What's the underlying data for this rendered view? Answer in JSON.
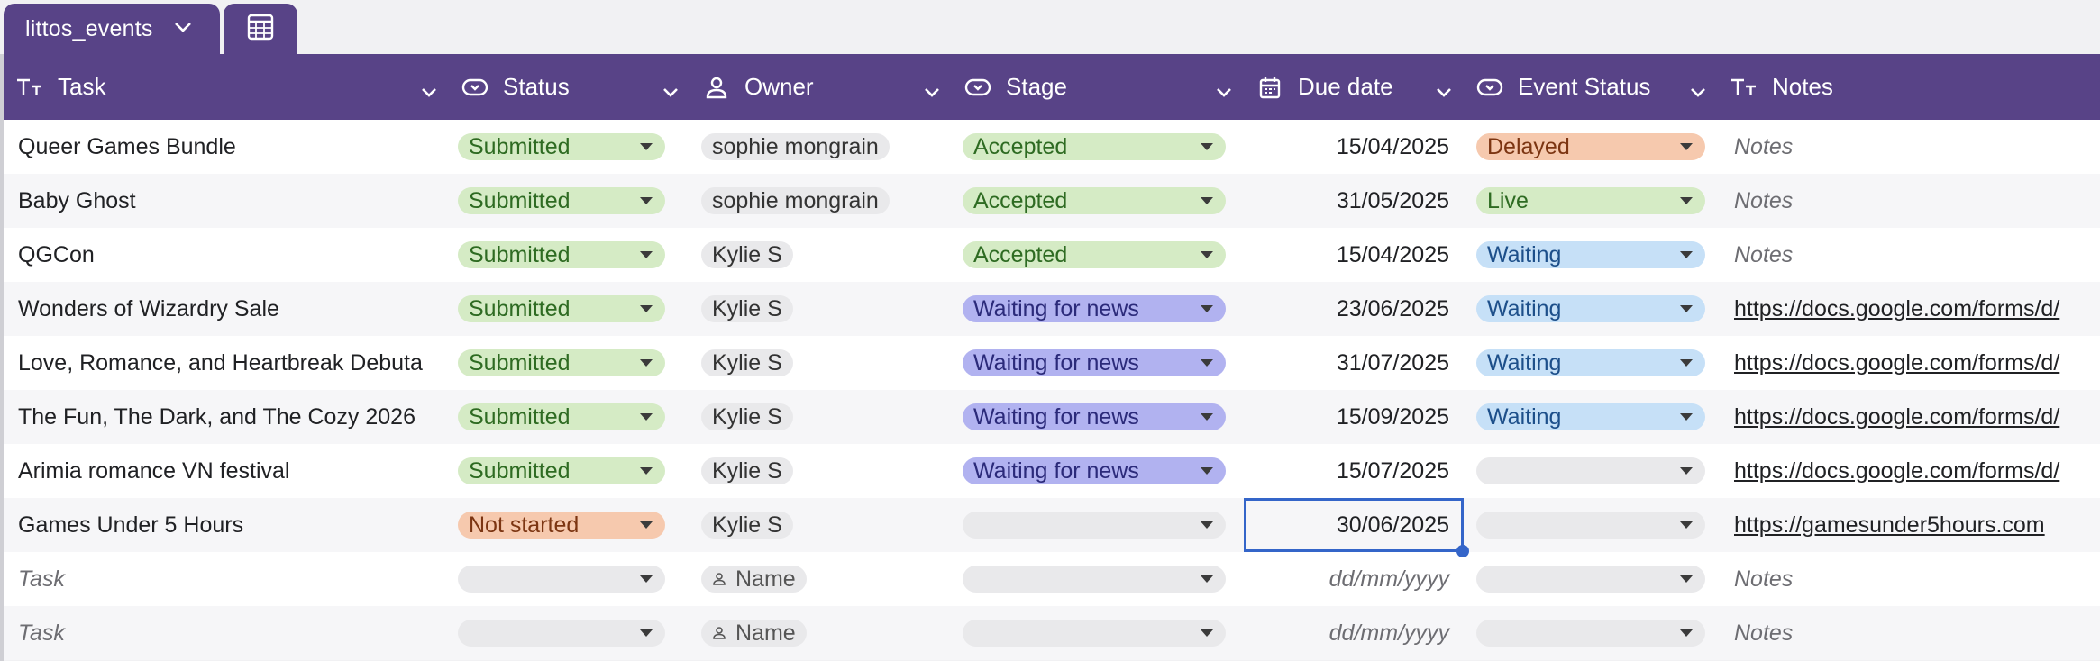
{
  "tab": {
    "title": "littos_events",
    "icon": "table-icon"
  },
  "columns": [
    {
      "key": "task",
      "label": "Task",
      "icon": "text-type-icon"
    },
    {
      "key": "status",
      "label": "Status",
      "icon": "single-select-icon"
    },
    {
      "key": "owner",
      "label": "Owner",
      "icon": "person-icon"
    },
    {
      "key": "stage",
      "label": "Stage",
      "icon": "single-select-icon"
    },
    {
      "key": "due",
      "label": "Due date",
      "icon": "calendar-icon"
    },
    {
      "key": "event_status",
      "label": "Event Status",
      "icon": "single-select-icon"
    },
    {
      "key": "notes",
      "label": "Notes",
      "icon": "text-type-icon"
    }
  ],
  "colors": {
    "header_bg": "#584387",
    "green_bg": "#d5ebc5",
    "green_fg": "#2e6b22",
    "purple_bg": "#b1b2f0",
    "purple_fg": "#2b2a7a",
    "orange_bg": "#f6c9ae",
    "orange_fg": "#7c3512",
    "blue_bg": "#c6e0f7",
    "blue_fg": "#1d4f8a",
    "empty_bg": "#e9e9eb",
    "selection": "#3465c9"
  },
  "rows": [
    {
      "task": "Queer Games Bundle",
      "status": "Submitted",
      "owner": "sophie mongrain",
      "stage": "Accepted",
      "due": "15/04/2025",
      "event_status": "Delayed",
      "notes": "Notes",
      "notes_is_link": false
    },
    {
      "task": "Baby Ghost",
      "status": "Submitted",
      "owner": "sophie mongrain",
      "stage": "Accepted",
      "due": "31/05/2025",
      "event_status": "Live",
      "notes": "Notes",
      "notes_is_link": false
    },
    {
      "task": "QGCon",
      "status": "Submitted",
      "owner": "Kylie S",
      "stage": "Accepted",
      "due": "15/04/2025",
      "event_status": "Waiting",
      "notes": "Notes",
      "notes_is_link": false
    },
    {
      "task": "Wonders of Wizardry Sale",
      "status": "Submitted",
      "owner": "Kylie S",
      "stage": "Waiting for news",
      "due": "23/06/2025",
      "event_status": "Waiting",
      "notes": "https://docs.google.com/forms/d/",
      "notes_is_link": true
    },
    {
      "task": "Love, Romance, and Heartbreak Debuta",
      "status": "Submitted",
      "owner": "Kylie S",
      "stage": "Waiting for news",
      "due": "31/07/2025",
      "event_status": "Waiting",
      "notes": "https://docs.google.com/forms/d/",
      "notes_is_link": true
    },
    {
      "task": "The Fun, The Dark, and The Cozy 2026",
      "status": "Submitted",
      "owner": "Kylie S",
      "stage": "Waiting for news",
      "due": "15/09/2025",
      "event_status": "Waiting",
      "notes": "https://docs.google.com/forms/d/",
      "notes_is_link": true
    },
    {
      "task": "Arimia romance VN festival",
      "status": "Submitted",
      "owner": "Kylie S",
      "stage": "Waiting for news",
      "due": "15/07/2025",
      "event_status": "",
      "notes": "https://docs.google.com/forms/d/",
      "notes_is_link": true
    },
    {
      "task": "Games Under 5 Hours",
      "status": "Not started",
      "owner": "Kylie S",
      "stage": "",
      "due": "30/06/2025",
      "event_status": "",
      "notes": "https://gamesunder5hours.com",
      "notes_is_link": true
    },
    {
      "task": "",
      "status": "",
      "owner": "",
      "stage": "",
      "due": "",
      "event_status": "",
      "notes": "",
      "notes_is_link": false
    },
    {
      "task": "",
      "status": "",
      "owner": "",
      "stage": "",
      "due": "",
      "event_status": "",
      "notes": "",
      "notes_is_link": false
    }
  ],
  "placeholders": {
    "task": "Task",
    "owner": "Name",
    "due": "dd/mm/yyyy",
    "notes": "Notes"
  },
  "selected_cell": {
    "row": 7,
    "column": "due"
  }
}
